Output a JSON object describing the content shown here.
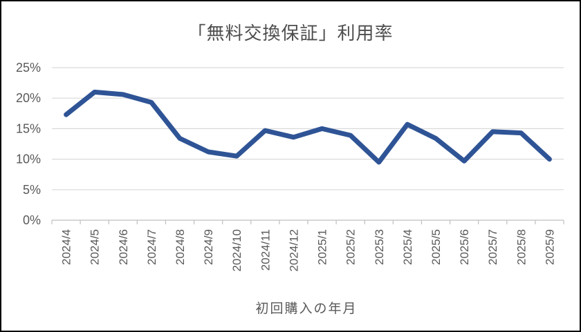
{
  "chart_data": {
    "type": "line",
    "title": "「無料交換保証」利用率",
    "xlabel": "初回購入の年月",
    "ylabel": "",
    "categories": [
      "2024/4",
      "2024/5",
      "2024/6",
      "2024/7",
      "2024/8",
      "2024/9",
      "2024/10",
      "2024/11",
      "2024/12",
      "2025/1",
      "2025/2",
      "2025/3",
      "2025/4",
      "2025/5",
      "2025/6",
      "2025/7",
      "2025/8",
      "2025/9"
    ],
    "series": [
      {
        "name": "利用率",
        "values": [
          17.3,
          21.0,
          20.6,
          19.3,
          13.4,
          11.2,
          10.5,
          14.7,
          13.6,
          15.0,
          13.9,
          9.5,
          15.7,
          13.4,
          9.7,
          14.5,
          14.3,
          10.0
        ]
      }
    ],
    "ylim": [
      0,
      25
    ],
    "ytick_values": [
      0,
      5,
      10,
      15,
      20,
      25
    ],
    "ytick_labels": [
      "0%",
      "5%",
      "10%",
      "15%",
      "20%",
      "25%"
    ],
    "grid": true,
    "legend": false
  },
  "style": {
    "line_color": "#2F5496",
    "grid_color": "#D9D9D9",
    "axis_color": "#BFBFBF",
    "tick_text_color": "#595959",
    "title_color": "#4D4D4D",
    "background": "#FFFFFF",
    "frame_border_color": "#000000"
  }
}
